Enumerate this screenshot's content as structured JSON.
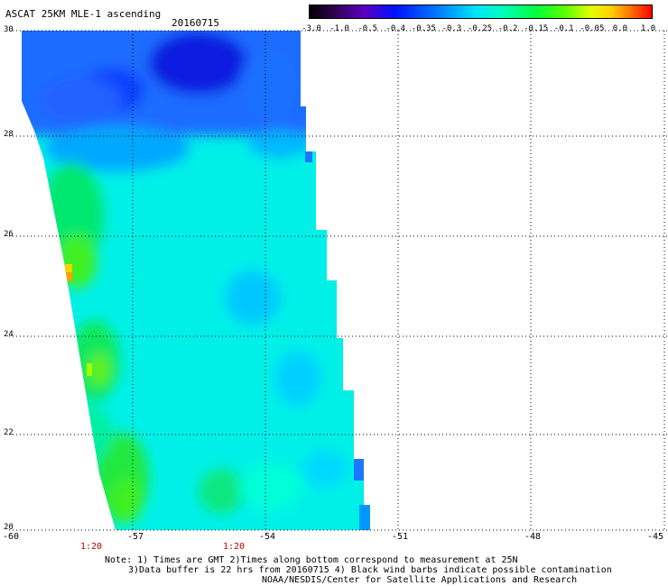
{
  "header": {
    "title": "ASCAT 25KM MLE-1 ascending",
    "date": "20160715"
  },
  "colorbar": {
    "labels": [
      "-3.0",
      "-1.0",
      "-0.5",
      "-0.4",
      "-0.35",
      "-0.3",
      "-0.25",
      "-0.2",
      "-0.15",
      "-0.1",
      "-0.05",
      "0.0",
      "1.0"
    ]
  },
  "axes": {
    "lat_labels": [
      "30",
      "28",
      "26",
      "24",
      "22",
      "20"
    ],
    "lon_labels": [
      "-60",
      "-57",
      "-54",
      "-51",
      "-48",
      "-45"
    ]
  },
  "time_labels": [
    "1:20",
    "1:20"
  ],
  "notes": {
    "line1": "Note: 1) Times are GMT 2)Times along bottom correspond to measurement at 25N",
    "line2": "3)Data buffer is 22 hrs from 20160715 4) Black wind barbs indicate possible contamination",
    "line3": "NOAA/NESDIS/Center for Satellite Applications and Research"
  }
}
